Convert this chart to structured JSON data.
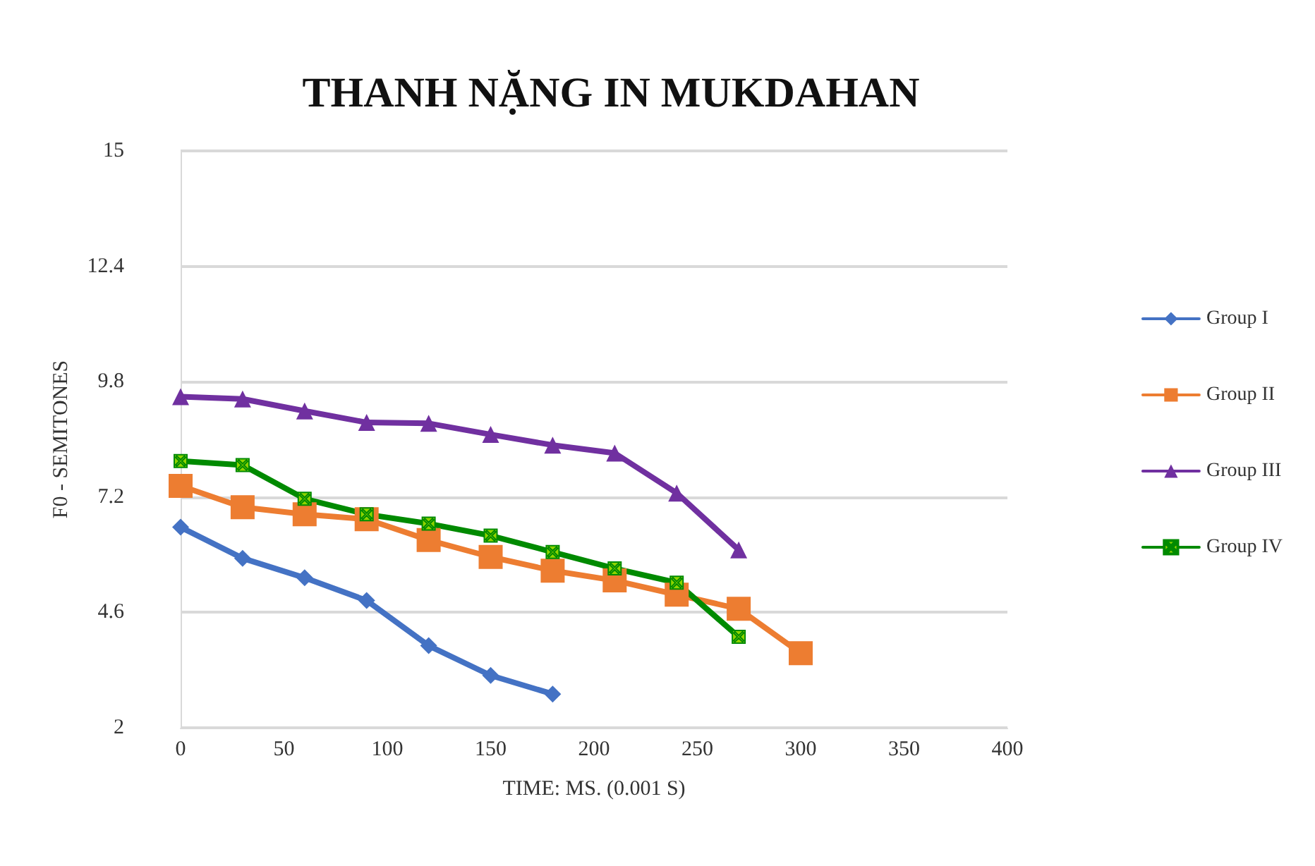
{
  "chart_data": {
    "type": "line",
    "title": "THANH NẶNG IN MUKDAHAN",
    "xlabel": "TIME: MS. (0.001 S)",
    "ylabel": "F0 - SEMITONES",
    "x": [
      0,
      30,
      60,
      90,
      120,
      150,
      180,
      210,
      240,
      270,
      300
    ],
    "series": [
      {
        "name": "Group I",
        "color": "#4472c4",
        "marker": "diamond",
        "values": [
          6.52,
          5.82,
          5.38,
          4.87,
          3.85,
          3.18,
          2.76,
          null,
          null,
          null,
          null
        ]
      },
      {
        "name": "Group II",
        "color": "#ed7d31",
        "marker": "square",
        "values": [
          7.45,
          6.97,
          6.81,
          6.7,
          6.23,
          5.85,
          5.54,
          5.32,
          5.0,
          4.68,
          3.68
        ]
      },
      {
        "name": "Group III",
        "color": "#7030a0",
        "marker": "triangle",
        "values": [
          9.46,
          9.41,
          9.14,
          8.88,
          8.86,
          8.61,
          8.37,
          8.19,
          7.29,
          6.01,
          null
        ]
      },
      {
        "name": "Group IV",
        "color": "#008a00",
        "marker": "cross",
        "values": [
          8.01,
          7.92,
          7.16,
          6.81,
          6.6,
          6.33,
          5.96,
          5.59,
          5.27,
          4.05,
          null
        ]
      }
    ],
    "xlim": [
      0,
      400
    ],
    "xticks": [
      0,
      50,
      100,
      150,
      200,
      250,
      300,
      350,
      400
    ],
    "ylim": [
      2,
      15
    ],
    "yticks": [
      2,
      4.6,
      7.2,
      9.8,
      12.4,
      15
    ],
    "grid": "y",
    "legend": "right",
    "line_style": "solid"
  }
}
